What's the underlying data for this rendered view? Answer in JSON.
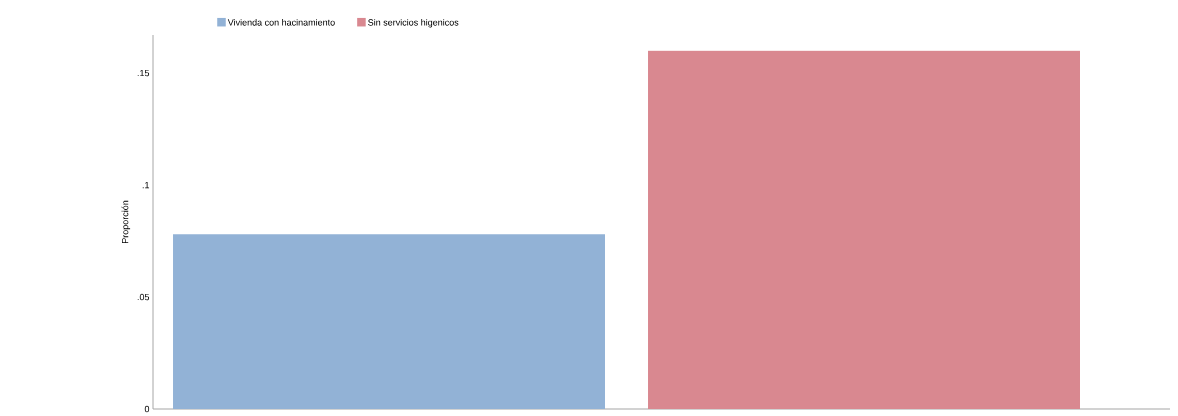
{
  "chart_data": {
    "type": "bar",
    "ylabel": "Proporción",
    "categories": [
      null
    ],
    "series": [
      {
        "name": "Vivienda con hacinamiento",
        "color": "#92b2d6",
        "values": [
          0.078
        ]
      },
      {
        "name": "Sin servicios higenicos",
        "color": "#d98890",
        "values": [
          0.16
        ]
      }
    ],
    "ylim": [
      0,
      0.167
    ],
    "yticks": [
      0,
      {
        "value": 0.05,
        "label": ".05"
      },
      {
        "value": 0.1,
        "label": ".1"
      },
      {
        "value": 0.15,
        "label": ".15"
      }
    ],
    "legend": "top left",
    "tick_labels": "y"
  }
}
